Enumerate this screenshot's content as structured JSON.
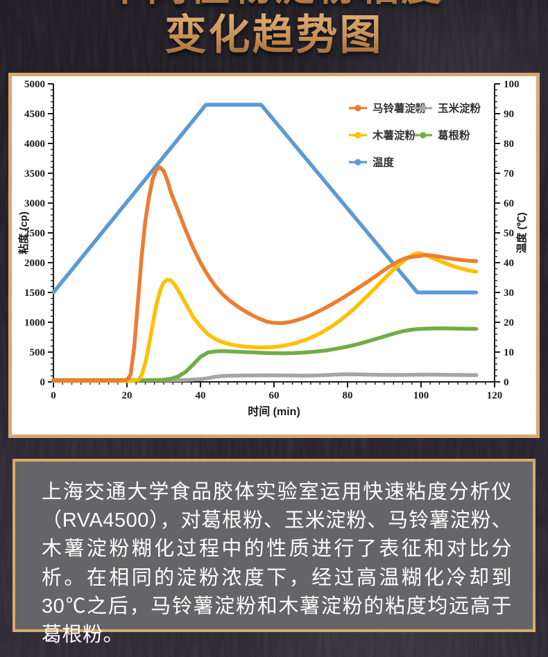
{
  "title": {
    "line1": "不同植物淀粉粘度",
    "line2": "变化趋势图"
  },
  "chart_data": {
    "type": "line",
    "x_label": "时间 (min)",
    "y_left_label": "粘度 (cp)",
    "y_right_label": "温度 (℃)",
    "x_range": [
      0,
      120
    ],
    "x_ticks": [
      0,
      20,
      40,
      60,
      80,
      100,
      120
    ],
    "x_minor_step": 2.5,
    "y_left_range": [
      0,
      5000
    ],
    "y_left_ticks": [
      0,
      500,
      1000,
      1500,
      2000,
      2500,
      3000,
      3500,
      4000,
      4500,
      5000
    ],
    "y_left_minor_step": 100,
    "y_right_range": [
      0,
      100
    ],
    "y_right_ticks": [
      0,
      10,
      20,
      30,
      40,
      50,
      60,
      70,
      80,
      90,
      100
    ],
    "y_right_minor_step": 2,
    "grid": false,
    "legend_position": "inside-top-right",
    "series": [
      {
        "name": "马铃薯淀粉",
        "color": "#ED7D31",
        "axis": "left",
        "points": [
          [
            0,
            20
          ],
          [
            10,
            20
          ],
          [
            18,
            20
          ],
          [
            20,
            35
          ],
          [
            21,
            120
          ],
          [
            22,
            600
          ],
          [
            23,
            1350
          ],
          [
            24,
            2100
          ],
          [
            25,
            2700
          ],
          [
            26,
            3100
          ],
          [
            27,
            3400
          ],
          [
            28,
            3560
          ],
          [
            29,
            3600
          ],
          [
            30,
            3540
          ],
          [
            31,
            3380
          ],
          [
            32,
            3170
          ],
          [
            34,
            2860
          ],
          [
            36,
            2540
          ],
          [
            38,
            2250
          ],
          [
            40,
            2000
          ],
          [
            42,
            1790
          ],
          [
            44,
            1610
          ],
          [
            46,
            1470
          ],
          [
            48,
            1360
          ],
          [
            50,
            1270
          ],
          [
            52,
            1190
          ],
          [
            54,
            1120
          ],
          [
            56,
            1060
          ],
          [
            58,
            1010
          ],
          [
            60,
            990
          ],
          [
            62,
            985
          ],
          [
            64,
            1000
          ],
          [
            66,
            1030
          ],
          [
            68,
            1070
          ],
          [
            70,
            1120
          ],
          [
            73,
            1210
          ],
          [
            76,
            1310
          ],
          [
            79,
            1420
          ],
          [
            82,
            1540
          ],
          [
            85,
            1660
          ],
          [
            88,
            1790
          ],
          [
            91,
            1920
          ],
          [
            94,
            2030
          ],
          [
            96,
            2080
          ],
          [
            98,
            2100
          ],
          [
            100,
            2115
          ],
          [
            101,
            2130
          ],
          [
            103,
            2120
          ],
          [
            105,
            2100
          ],
          [
            107,
            2080
          ],
          [
            109,
            2060
          ],
          [
            111,
            2045
          ],
          [
            113,
            2032
          ],
          [
            115,
            2025
          ]
        ]
      },
      {
        "name": "玉米淀粉",
        "color": "#A5A5A5",
        "axis": "left",
        "points": [
          [
            0,
            25
          ],
          [
            10,
            26
          ],
          [
            20,
            27
          ],
          [
            30,
            28
          ],
          [
            36,
            32
          ],
          [
            40,
            45
          ],
          [
            42,
            62
          ],
          [
            44,
            85
          ],
          [
            46,
            98
          ],
          [
            48,
            104
          ],
          [
            52,
            107
          ],
          [
            56,
            109
          ],
          [
            60,
            110
          ],
          [
            64,
            108
          ],
          [
            68,
            105
          ],
          [
            71,
            107
          ],
          [
            74,
            113
          ],
          [
            77,
            122
          ],
          [
            80,
            128
          ],
          [
            83,
            126
          ],
          [
            86,
            121
          ],
          [
            90,
            116
          ],
          [
            94,
            116
          ],
          [
            98,
            120
          ],
          [
            102,
            122
          ],
          [
            106,
            119
          ],
          [
            110,
            116
          ],
          [
            115,
            113
          ]
        ]
      },
      {
        "name": "木薯淀粉",
        "color": "#FFC000",
        "axis": "left",
        "points": [
          [
            0,
            15
          ],
          [
            10,
            15
          ],
          [
            21,
            15
          ],
          [
            23,
            30
          ],
          [
            24,
            110
          ],
          [
            25,
            320
          ],
          [
            26,
            620
          ],
          [
            27,
            960
          ],
          [
            28,
            1290
          ],
          [
            29,
            1530
          ],
          [
            30,
            1670
          ],
          [
            31,
            1715
          ],
          [
            32,
            1700
          ],
          [
            33,
            1630
          ],
          [
            34,
            1530
          ],
          [
            36,
            1310
          ],
          [
            38,
            1090
          ],
          [
            40,
            930
          ],
          [
            42,
            800
          ],
          [
            44,
            720
          ],
          [
            46,
            665
          ],
          [
            48,
            630
          ],
          [
            50,
            608
          ],
          [
            52,
            592
          ],
          [
            54,
            583
          ],
          [
            56,
            578
          ],
          [
            58,
            578
          ],
          [
            60,
            585
          ],
          [
            62,
            600
          ],
          [
            64,
            622
          ],
          [
            66,
            652
          ],
          [
            68,
            692
          ],
          [
            70,
            740
          ],
          [
            72,
            798
          ],
          [
            74,
            866
          ],
          [
            76,
            944
          ],
          [
            78,
            1032
          ],
          [
            80,
            1130
          ],
          [
            82,
            1240
          ],
          [
            84,
            1358
          ],
          [
            86,
            1480
          ],
          [
            88,
            1605
          ],
          [
            90,
            1730
          ],
          [
            92,
            1852
          ],
          [
            94,
            1965
          ],
          [
            96,
            2065
          ],
          [
            98,
            2140
          ],
          [
            99,
            2160
          ],
          [
            100,
            2150
          ],
          [
            102,
            2105
          ],
          [
            104,
            2055
          ],
          [
            106,
            2005
          ],
          [
            108,
            1958
          ],
          [
            110,
            1918
          ],
          [
            112,
            1884
          ],
          [
            114,
            1858
          ],
          [
            115,
            1848
          ]
        ]
      },
      {
        "name": "葛根粉",
        "color": "#70AD47",
        "axis": "left",
        "points": [
          [
            0,
            30
          ],
          [
            15,
            30
          ],
          [
            28,
            30
          ],
          [
            30,
            36
          ],
          [
            32,
            52
          ],
          [
            34,
            92
          ],
          [
            36,
            170
          ],
          [
            38,
            290
          ],
          [
            40,
            420
          ],
          [
            42,
            492
          ],
          [
            44,
            512
          ],
          [
            46,
            516
          ],
          [
            48,
            512
          ],
          [
            50,
            506
          ],
          [
            53,
            498
          ],
          [
            56,
            490
          ],
          [
            59,
            483
          ],
          [
            62,
            480
          ],
          [
            65,
            483
          ],
          [
            68,
            492
          ],
          [
            71,
            506
          ],
          [
            74,
            526
          ],
          [
            77,
            556
          ],
          [
            80,
            592
          ],
          [
            83,
            636
          ],
          [
            86,
            688
          ],
          [
            89,
            744
          ],
          [
            92,
            800
          ],
          [
            95,
            850
          ],
          [
            97,
            872
          ],
          [
            99,
            885
          ],
          [
            101,
            892
          ],
          [
            104,
            896
          ],
          [
            107,
            896
          ],
          [
            110,
            894
          ],
          [
            113,
            891
          ],
          [
            115,
            890
          ]
        ]
      },
      {
        "name": "温度",
        "color": "#5B9BD5",
        "axis": "right",
        "points": [
          [
            0,
            30
          ],
          [
            41.5,
            93
          ],
          [
            56.5,
            93
          ],
          [
            99,
            30
          ],
          [
            115,
            30
          ]
        ]
      }
    ],
    "draw_order": [
      4,
      1,
      3,
      2,
      0
    ]
  },
  "description": {
    "text": "上海交通大学食品胶体实验室运用快速粘度分析仪（RVA4500），对葛根粉、玉米淀粉、马铃薯淀粉、木薯淀粉糊化过程中的性质进行了表征和对比分析。在相同的淀粉浓度下，经过高温糊化冷却到30℃之后，马铃薯淀粉和木薯淀粉的粘度均远高于葛根粉。"
  },
  "colors": {
    "accent_tan": "#D9A76C",
    "panel_bg": "#FFFFFF",
    "desc_bg": "#656567",
    "title_gold": "#C28B52",
    "axis": "#1A1A1A"
  }
}
